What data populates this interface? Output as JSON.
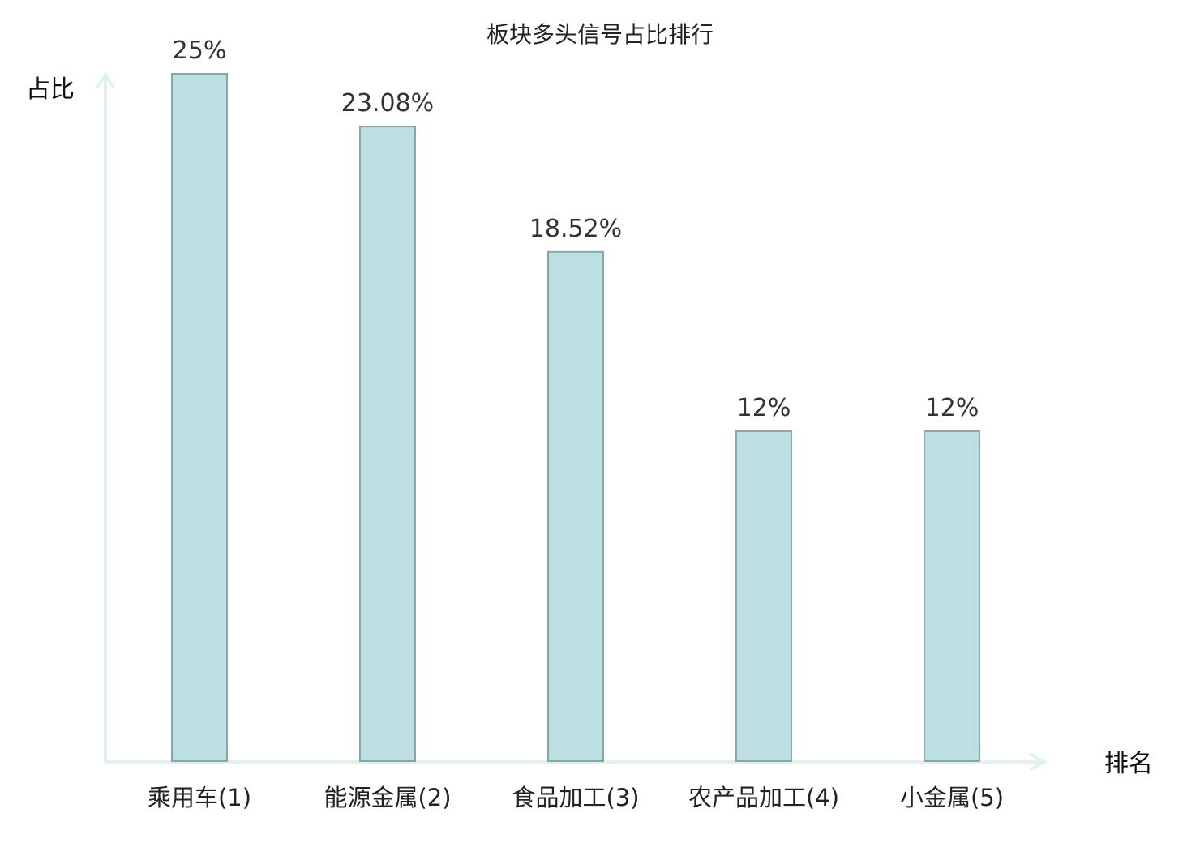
{
  "chart_data": {
    "type": "bar",
    "title": "板块多头信号占比排行",
    "ylabel": "占比",
    "xlabel": "排名",
    "categories": [
      {
        "name": "乘用车",
        "rank": "(1)",
        "highlight": true
      },
      {
        "name": "能源金属",
        "rank": "(2)",
        "highlight": false
      },
      {
        "name": "食品加工",
        "rank": "(3)",
        "highlight": false
      },
      {
        "name": "农产品加工",
        "rank": "(4)",
        "highlight": false
      },
      {
        "name": "小金属",
        "rank": "(5)",
        "highlight": false
      }
    ],
    "values": [
      25,
      23.08,
      18.52,
      12,
      12
    ],
    "value_labels": [
      "25%",
      "23.08%",
      "18.52%",
      "12%",
      "12%"
    ],
    "ylim": [
      0,
      25
    ],
    "grid": false,
    "colors": {
      "bar_fill": "#bce0e1",
      "bar_stroke": "#8aa5a6",
      "axis": "#dff2ef",
      "highlight_label": "#e03030",
      "label": "#222222"
    }
  }
}
